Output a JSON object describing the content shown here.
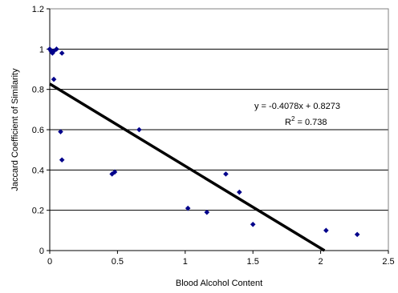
{
  "chart_data": {
    "type": "scatter",
    "title": "",
    "xlabel": "Blood Alcohol Content",
    "ylabel": "Jaccard Coefficient of Similarity",
    "xlim": [
      0,
      2.5
    ],
    "ylim": [
      0,
      1.2
    ],
    "x_ticks": [
      0,
      0.5,
      1,
      1.5,
      2,
      2.5
    ],
    "x_tick_labels": [
      "0",
      "0.5",
      "1",
      "1.5",
      "2",
      "2.5"
    ],
    "y_ticks": [
      0,
      0.2,
      0.4,
      0.6,
      0.8,
      1,
      1.2
    ],
    "y_tick_labels": [
      "0",
      "0.2",
      "0.4",
      "0.6",
      "0.8",
      "1",
      "1.2"
    ],
    "grid": "horizontal",
    "point_color": "#00008B",
    "points": [
      {
        "x": 0.0,
        "y": 1.0
      },
      {
        "x": 0.01,
        "y": 0.99
      },
      {
        "x": 0.02,
        "y": 0.98
      },
      {
        "x": 0.03,
        "y": 0.99
      },
      {
        "x": 0.05,
        "y": 1.0
      },
      {
        "x": 0.09,
        "y": 0.98
      },
      {
        "x": 0.03,
        "y": 0.85
      },
      {
        "x": 0.08,
        "y": 0.59
      },
      {
        "x": 0.09,
        "y": 0.45
      },
      {
        "x": 0.46,
        "y": 0.38
      },
      {
        "x": 0.48,
        "y": 0.39
      },
      {
        "x": 0.66,
        "y": 0.6
      },
      {
        "x": 1.02,
        "y": 0.21
      },
      {
        "x": 1.16,
        "y": 0.19
      },
      {
        "x": 1.3,
        "y": 0.38
      },
      {
        "x": 1.4,
        "y": 0.29
      },
      {
        "x": 1.5,
        "y": 0.13
      },
      {
        "x": 2.04,
        "y": 0.1
      },
      {
        "x": 2.27,
        "y": 0.08
      }
    ],
    "trendline": {
      "slope": -0.4078,
      "intercept": 0.8273,
      "color": "#000000"
    },
    "equation_label": "y = -0.4078x + 0.8273",
    "r2_label": "R",
    "r2_superscript": "2",
    "r2_value": " = 0.738"
  }
}
